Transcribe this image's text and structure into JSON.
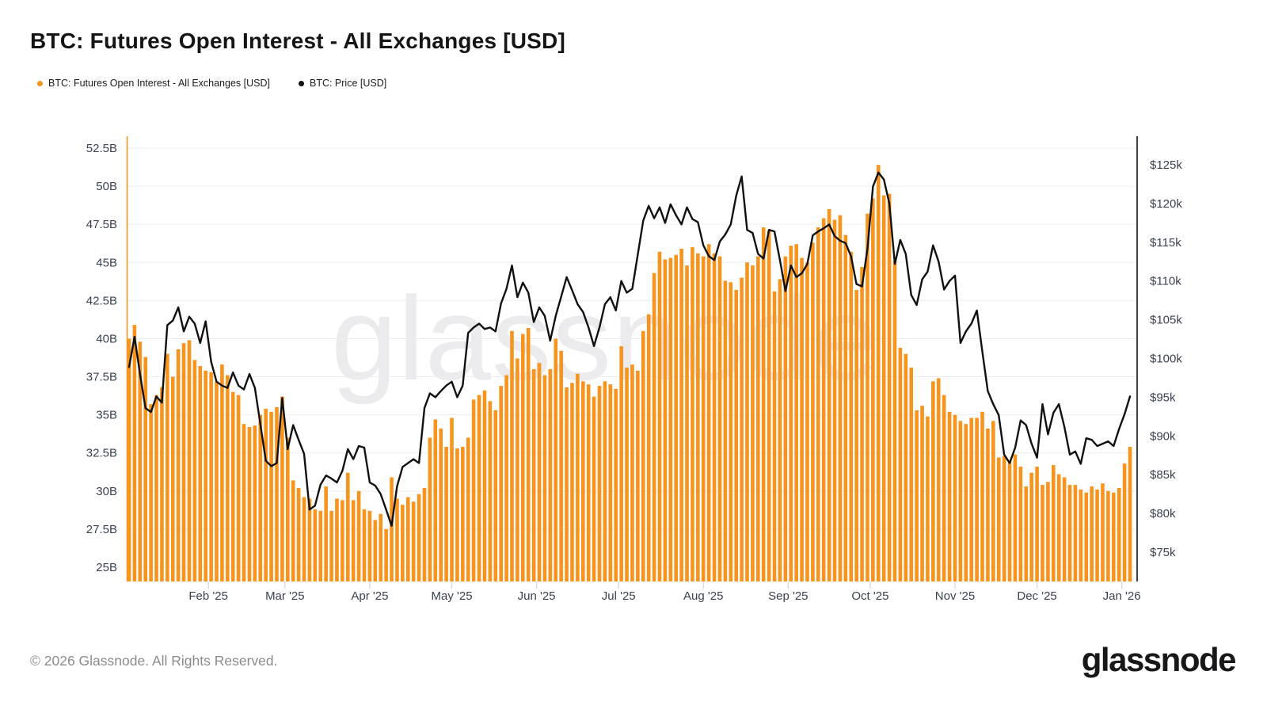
{
  "header": {
    "title": "BTC: Futures Open Interest - All Exchanges [USD]"
  },
  "legend": [
    {
      "label": "BTC: Futures Open Interest - All Exchanges [USD]",
      "color": "#f7941e"
    },
    {
      "label": "BTC: Price [USD]",
      "color": "#111111"
    }
  ],
  "watermark": "glassnode",
  "footer": {
    "copyright": "© 2026 Glassnode. All Rights Reserved.",
    "brand": "glassnode"
  },
  "colors": {
    "open_interest_orange": "#f7941e",
    "price_black": "#111111",
    "gridline": "#ededef",
    "axis_label": "#3a4250",
    "right_axis_line": "#3f3f44",
    "background": "#ffffff"
  },
  "chart_data": {
    "type": "bar+line",
    "title": "BTC: Futures Open Interest - All Exchanges [USD]",
    "grid": "horizontal-only",
    "legend_position": "top-left",
    "point_step_days": 2,
    "x_ticks": [
      {
        "label": "Feb '25",
        "day": 29
      },
      {
        "label": "Mar '25",
        "day": 57
      },
      {
        "label": "Apr '25",
        "day": 88
      },
      {
        "label": "May '25",
        "day": 118
      },
      {
        "label": "Jun '25",
        "day": 149
      },
      {
        "label": "Jul '25",
        "day": 179
      },
      {
        "label": "Aug '25",
        "day": 210
      },
      {
        "label": "Sep '25",
        "day": 241
      },
      {
        "label": "Oct '25",
        "day": 271
      },
      {
        "label": "Nov '25",
        "day": 302
      },
      {
        "label": "Dec '25",
        "day": 332
      },
      {
        "label": "Jan '26",
        "day": 363
      }
    ],
    "left_axis": {
      "unit": "USD billions",
      "tick_labels": [
        "52.5B",
        "50B",
        "47.5B",
        "45B",
        "42.5B",
        "40B",
        "37.5B",
        "35B",
        "32.5B",
        "30B",
        "27.5B",
        "25B"
      ],
      "tick_values": [
        52.5,
        50,
        47.5,
        45,
        42.5,
        40,
        37.5,
        35,
        32.5,
        30,
        27.5,
        25
      ]
    },
    "right_axis": {
      "unit": "USD thousands",
      "tick_labels": [
        "$125k",
        "$120k",
        "$115k",
        "$110k",
        "$105k",
        "$100k",
        "$95k",
        "$90k",
        "$85k",
        "$80k",
        "$75k"
      ],
      "tick_values": [
        125,
        120,
        115,
        110,
        105,
        100,
        95,
        90,
        85,
        80,
        75
      ]
    },
    "series": [
      {
        "name": "BTC: Futures Open Interest - All Exchanges [USD]",
        "type": "bar",
        "axis": "left",
        "unit": "B (USD billions)",
        "color": "#f7941e",
        "values": [
          40.0,
          40.9,
          39.8,
          38.8,
          35.7,
          36.3,
          36.8,
          39.0,
          37.5,
          39.3,
          39.7,
          39.9,
          38.6,
          38.2,
          37.9,
          37.8,
          37.2,
          38.3,
          37.6,
          36.5,
          36.3,
          34.4,
          34.2,
          34.3,
          35.0,
          35.4,
          35.2,
          35.5,
          36.2,
          33.5,
          30.7,
          30.2,
          29.6,
          29.5,
          28.8,
          28.7,
          30.3,
          28.7,
          29.5,
          29.4,
          31.2,
          29.4,
          30.0,
          28.8,
          28.7,
          28.1,
          28.5,
          27.5,
          30.9,
          29.5,
          29.1,
          29.6,
          29.3,
          29.8,
          30.2,
          33.5,
          34.7,
          34.1,
          32.9,
          34.8,
          32.8,
          32.9,
          33.5,
          36.0,
          36.3,
          36.6,
          35.9,
          35.3,
          36.9,
          37.6,
          40.5,
          38.7,
          40.3,
          40.7,
          38.0,
          38.4,
          37.6,
          38.0,
          40.0,
          39.2,
          36.8,
          37.1,
          37.7,
          37.2,
          37.0,
          36.2,
          36.9,
          37.2,
          37.0,
          36.7,
          39.5,
          38.1,
          38.3,
          37.9,
          40.5,
          41.6,
          44.3,
          45.7,
          45.2,
          45.3,
          45.5,
          45.9,
          44.8,
          46.0,
          45.6,
          45.4,
          46.2,
          45.6,
          45.4,
          43.8,
          43.7,
          43.2,
          44.0,
          45.0,
          44.8,
          45.4,
          47.3,
          47.1,
          43.1,
          43.9,
          45.4,
          46.1,
          46.2,
          45.3,
          45.0,
          46.3,
          47.3,
          47.9,
          48.5,
          47.8,
          48.1,
          46.8,
          45.7,
          43.2,
          44.7,
          48.2,
          49.2,
          51.4,
          49.4,
          49.5,
          45.1,
          39.4,
          39.0,
          38.1,
          35.3,
          35.6,
          34.9,
          37.2,
          37.4,
          36.3,
          35.2,
          35.0,
          34.6,
          34.4,
          34.8,
          34.8,
          35.2,
          34.1,
          34.6,
          32.2,
          32.3,
          32.0,
          32.4,
          31.6,
          30.3,
          31.2,
          31.6,
          30.4,
          30.6,
          31.7,
          31.1,
          30.9,
          30.4,
          30.4,
          30.1,
          29.9,
          30.3,
          30.1,
          30.5,
          30.0,
          29.9,
          30.2,
          31.8,
          32.9
        ]
      },
      {
        "name": "BTC: Price [USD]",
        "type": "line",
        "axis": "right",
        "unit": "$k (USD thousands)",
        "color": "#111111",
        "values": [
          98.9,
          102.8,
          98.0,
          93.6,
          93.1,
          95.1,
          94.3,
          104.3,
          104.9,
          106.6,
          103.5,
          105.4,
          104.5,
          102.0,
          104.8,
          99.6,
          97.0,
          96.5,
          96.2,
          98.2,
          96.5,
          96.0,
          98.0,
          96.2,
          91.5,
          86.8,
          86.1,
          86.5,
          94.9,
          88.3,
          91.4,
          89.5,
          87.7,
          80.5,
          81.0,
          83.7,
          84.9,
          84.5,
          84.0,
          85.5,
          88.3,
          87.0,
          88.7,
          88.5,
          84.0,
          83.6,
          82.5,
          80.5,
          78.4,
          83.5,
          86.0,
          86.5,
          87.0,
          86.5,
          93.6,
          95.5,
          95.0,
          95.8,
          96.5,
          97.0,
          95.0,
          96.5,
          103.3,
          104.0,
          104.5,
          103.8,
          104.0,
          103.5,
          107.1,
          109.0,
          112.0,
          107.9,
          109.8,
          108.5,
          104.7,
          106.6,
          105.5,
          102.3,
          105.5,
          108.0,
          110.5,
          108.8,
          107.0,
          106.0,
          104.0,
          101.6,
          104.0,
          107.0,
          107.9,
          106.2,
          110.0,
          108.5,
          109.0,
          113.4,
          117.8,
          119.7,
          118.1,
          119.5,
          117.5,
          119.9,
          118.5,
          117.3,
          119.5,
          118.0,
          117.6,
          114.6,
          113.2,
          112.7,
          115.1,
          116.0,
          117.3,
          121.0,
          123.5,
          116.6,
          116.2,
          113.5,
          112.9,
          116.6,
          116.4,
          112.7,
          108.7,
          112.0,
          110.5,
          111.0,
          112.2,
          115.9,
          116.4,
          116.8,
          117.3,
          115.8,
          115.2,
          114.9,
          113.2,
          109.6,
          109.3,
          114.2,
          122.2,
          124.0,
          123.1,
          120.0,
          112.2,
          115.3,
          113.5,
          108.2,
          106.9,
          110.2,
          111.2,
          114.6,
          112.5,
          108.9,
          110.0,
          110.7,
          102.0,
          103.5,
          104.5,
          106.2,
          100.9,
          95.8,
          94.1,
          92.7,
          87.6,
          86.5,
          88.5,
          92.0,
          91.4,
          89.0,
          87.2,
          94.1,
          90.2,
          93.0,
          94.1,
          91.2,
          87.6,
          88.0,
          86.4,
          89.7,
          89.5,
          88.7,
          89.0,
          89.3,
          88.7,
          90.9,
          92.8,
          95.1
        ]
      }
    ]
  }
}
